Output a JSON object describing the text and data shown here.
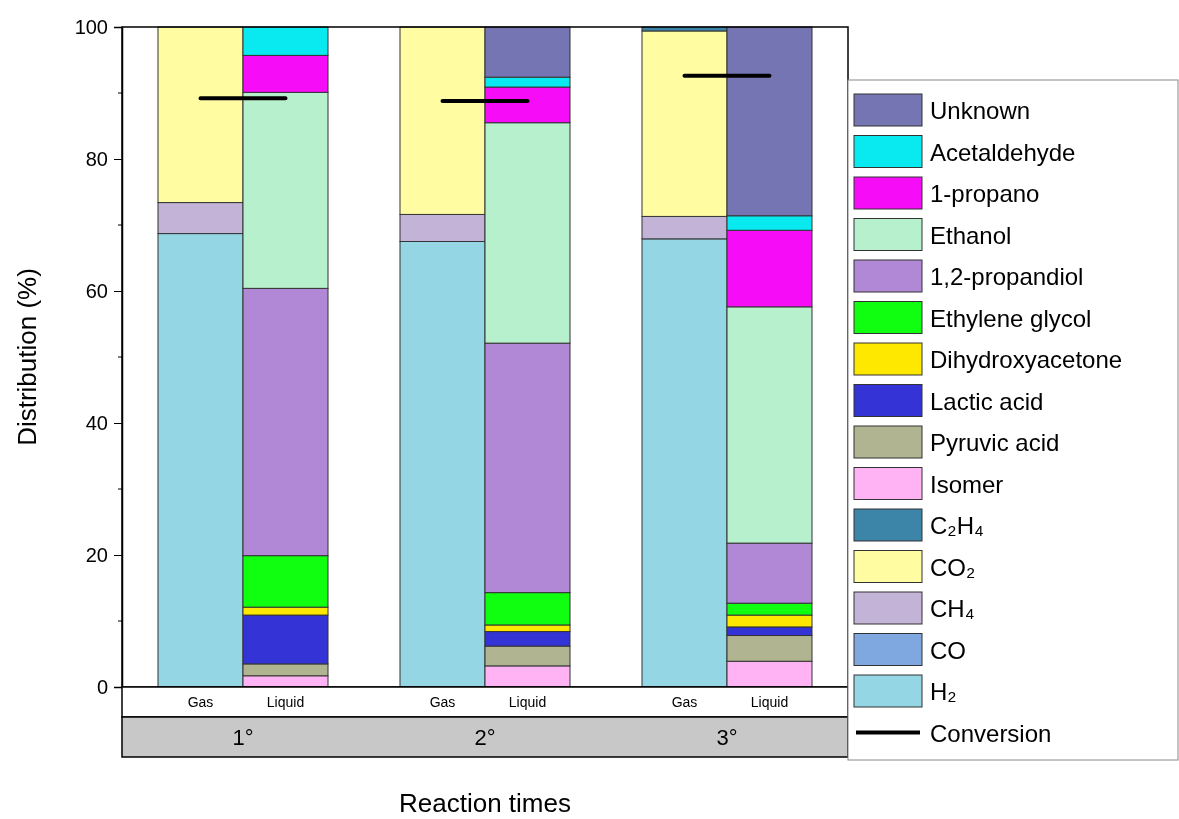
{
  "chart_data": {
    "type": "bar",
    "stacked": true,
    "xlabel": "Reaction times",
    "ylabel": "Distribution (%)",
    "categories": [
      "Gas",
      "Liquid",
      "Gas",
      "Liquid",
      "Gas",
      "Liquid"
    ],
    "annotations": [
      "1°",
      "2°",
      "3°"
    ],
    "ylim": [
      0,
      100
    ],
    "yticks": [
      0,
      20,
      40,
      60,
      80,
      100
    ],
    "legend": "right",
    "grid": false,
    "series": [
      {
        "name": "H₂",
        "color": "#94d6e3",
        "values": [
          68.7,
          null,
          67.5,
          null,
          67.9,
          null
        ]
      },
      {
        "name": "CO",
        "color": "#80a8e0",
        "values": [
          null,
          null,
          null,
          null,
          null,
          null
        ]
      },
      {
        "name": "CH₄",
        "color": "#c3b3d6",
        "values": [
          4.7,
          null,
          4.1,
          null,
          3.4,
          null
        ]
      },
      {
        "name": "CO₂",
        "color": "#fffca2",
        "values": [
          26.6,
          null,
          28.4,
          null,
          28.1,
          null
        ]
      },
      {
        "name": "C₂H₄",
        "color": "#3d85a8",
        "values": [
          null,
          null,
          null,
          null,
          0.6,
          null
        ]
      },
      {
        "name": "Isomer",
        "color": "#ffb3f5",
        "values": [
          null,
          1.7,
          null,
          3.2,
          null,
          3.9
        ]
      },
      {
        "name": "Pyruvic acid",
        "color": "#b0b490",
        "values": [
          null,
          1.8,
          null,
          3.0,
          null,
          3.9
        ]
      },
      {
        "name": "Lactic acid",
        "color": "#3333d6",
        "values": [
          null,
          7.4,
          null,
          2.2,
          null,
          1.3
        ]
      },
      {
        "name": "Dihydroxyacetone",
        "color": "#ffe800",
        "values": [
          null,
          1.2,
          null,
          1.0,
          null,
          1.8
        ]
      },
      {
        "name": "Ethylene glycol",
        "color": "#10ff10",
        "values": [
          null,
          7.8,
          null,
          4.9,
          null,
          1.8
        ]
      },
      {
        "name": "1,2-propandiol",
        "color": "#b088d6",
        "values": [
          null,
          40.5,
          null,
          37.8,
          null,
          9.1
        ]
      },
      {
        "name": "Ethanol",
        "color": "#b6f0cc",
        "values": [
          null,
          29.7,
          null,
          33.4,
          null,
          35.8
        ]
      },
      {
        "name": "1-propano",
        "color": "#f60cf6",
        "values": [
          null,
          5.6,
          null,
          5.4,
          null,
          11.6
        ]
      },
      {
        "name": "Acetaldehyde",
        "color": "#08eaf0",
        "values": [
          null,
          4.3,
          null,
          1.5,
          null,
          2.2
        ]
      },
      {
        "name": "Unknown",
        "color": "#7575b3",
        "values": [
          null,
          null,
          null,
          7.6,
          null,
          28.6
        ]
      },
      {
        "name": "Conversion",
        "type": "line",
        "color": "#000000",
        "values": [
          89.2,
          89.2,
          88.8,
          88.8,
          92.6,
          92.6
        ]
      }
    ]
  }
}
